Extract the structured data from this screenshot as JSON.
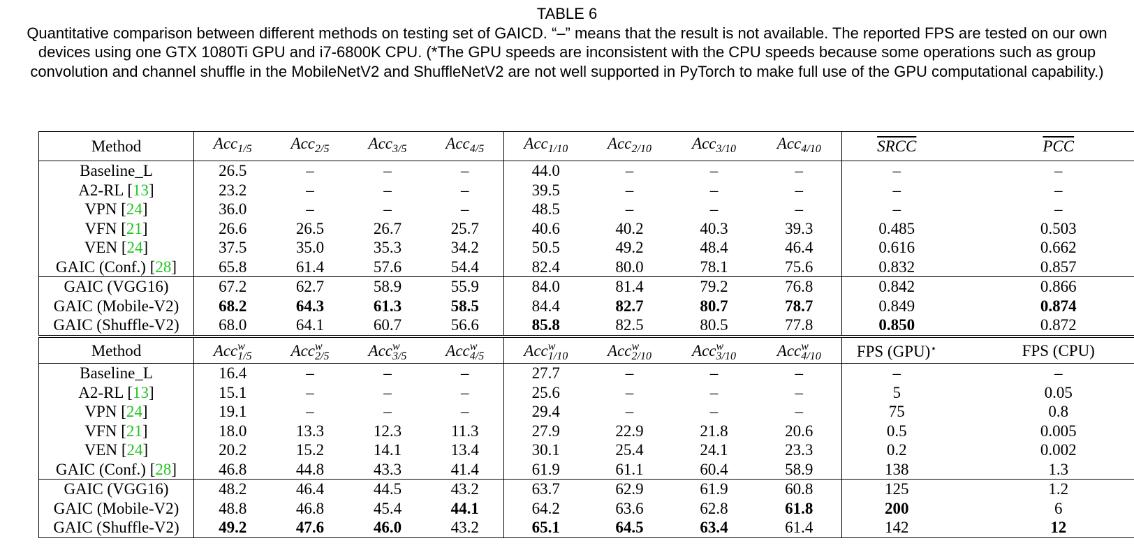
{
  "caption": {
    "label": "TABLE 6",
    "text": "Quantitative comparison between different methods on testing set of GAICD. “–” means that the result is not available. The reported FPS are tested on our own devices using one GTX 1080Ti GPU and i7-6800K CPU. (*The GPU speeds are inconsistent with the CPU speeds because some operations such as group convolution and channel shuffle in the MobileNetV2 and ShuffleNetV2 are not well supported in PyTorch to make full use of the GPU computational capability.)"
  },
  "top_table": {
    "method_header": "Method",
    "headers": [
      {
        "base": "Acc",
        "sub": "1/5"
      },
      {
        "base": "Acc",
        "sub": "2/5"
      },
      {
        "base": "Acc",
        "sub": "3/5"
      },
      {
        "base": "Acc",
        "sub": "4/5"
      },
      {
        "base": "Acc",
        "sub": "1/10"
      },
      {
        "base": "Acc",
        "sub": "2/10"
      },
      {
        "base": "Acc",
        "sub": "3/10"
      },
      {
        "base": "Acc",
        "sub": "4/10"
      },
      {
        "text": "SRCC"
      },
      {
        "text": "PCC"
      }
    ],
    "rows": [
      {
        "name": "Baseline_L",
        "cite": "",
        "values": [
          "26.5",
          "–",
          "–",
          "–",
          "44.0",
          "–",
          "–",
          "–",
          "–",
          "–"
        ],
        "bold": []
      },
      {
        "name": "A2-RL",
        "cite": "13",
        "values": [
          "23.2",
          "–",
          "–",
          "–",
          "39.5",
          "–",
          "–",
          "–",
          "–",
          "–"
        ],
        "bold": []
      },
      {
        "name": "VPN",
        "cite": "24",
        "values": [
          "36.0",
          "–",
          "–",
          "–",
          "48.5",
          "–",
          "–",
          "–",
          "–",
          "–"
        ],
        "bold": []
      },
      {
        "name": "VFN",
        "cite": "21",
        "values": [
          "26.6",
          "26.5",
          "26.7",
          "25.7",
          "40.6",
          "40.2",
          "40.3",
          "39.3",
          "0.485",
          "0.503"
        ],
        "bold": []
      },
      {
        "name": "VEN",
        "cite": "24",
        "values": [
          "37.5",
          "35.0",
          "35.3",
          "34.2",
          "50.5",
          "49.2",
          "48.4",
          "46.4",
          "0.616",
          "0.662"
        ],
        "bold": []
      },
      {
        "name": "GAIC (Conf.)",
        "cite": "28",
        "values": [
          "65.8",
          "61.4",
          "57.6",
          "54.4",
          "82.4",
          "80.0",
          "78.1",
          "75.6",
          "0.832",
          "0.857"
        ],
        "bold": []
      },
      {
        "name": "GAIC (VGG16)",
        "cite": "",
        "values": [
          "67.2",
          "62.7",
          "58.9",
          "55.9",
          "84.0",
          "81.4",
          "79.2",
          "76.8",
          "0.842",
          "0.866"
        ],
        "bold": []
      },
      {
        "name": "GAIC (Mobile-V2)",
        "cite": "",
        "values": [
          "68.2",
          "64.3",
          "61.3",
          "58.5",
          "84.4",
          "82.7",
          "80.7",
          "78.7",
          "0.849",
          "0.874"
        ],
        "bold": [
          0,
          1,
          2,
          3,
          5,
          6,
          7,
          9
        ]
      },
      {
        "name": "GAIC (Shuffle-V2)",
        "cite": "",
        "values": [
          "68.0",
          "64.1",
          "60.7",
          "56.6",
          "85.8",
          "82.5",
          "80.5",
          "77.8",
          "0.850",
          "0.872"
        ],
        "bold": [
          4,
          8
        ]
      }
    ]
  },
  "bottom_table": {
    "method_header": "Method",
    "headers": [
      {
        "base": "Acc",
        "sup": "w",
        "sub": "1/5"
      },
      {
        "base": "Acc",
        "sup": "w",
        "sub": "2/5"
      },
      {
        "base": "Acc",
        "sup": "w",
        "sub": "3/5"
      },
      {
        "base": "Acc",
        "sup": "w",
        "sub": "4/5"
      },
      {
        "base": "Acc",
        "sup": "w",
        "sub": "1/10"
      },
      {
        "base": "Acc",
        "sup": "w",
        "sub": "2/10"
      },
      {
        "base": "Acc",
        "sup": "w",
        "sub": "3/10"
      },
      {
        "base": "Acc",
        "sup": "w",
        "sub": "4/10"
      },
      {
        "text": "FPS (GPU)",
        "star": "⋆"
      },
      {
        "text": "FPS (CPU)"
      }
    ],
    "rows": [
      {
        "name": "Baseline_L",
        "cite": "",
        "values": [
          "16.4",
          "–",
          "–",
          "–",
          "27.7",
          "–",
          "–",
          "–",
          "–",
          "–"
        ],
        "bold": []
      },
      {
        "name": "A2-RL",
        "cite": "13",
        "values": [
          "15.1",
          "–",
          "–",
          "–",
          "25.6",
          "–",
          "–",
          "–",
          "5",
          "0.05"
        ],
        "bold": []
      },
      {
        "name": "VPN",
        "cite": "24",
        "values": [
          "19.1",
          "–",
          "–",
          "–",
          "29.4",
          "–",
          "–",
          "–",
          "75",
          "0.8"
        ],
        "bold": []
      },
      {
        "name": "VFN",
        "cite": "21",
        "values": [
          "18.0",
          "13.3",
          "12.3",
          "11.3",
          "27.9",
          "22.9",
          "21.8",
          "20.6",
          "0.5",
          "0.005"
        ],
        "bold": []
      },
      {
        "name": "VEN",
        "cite": "24",
        "values": [
          "20.2",
          "15.2",
          "14.1",
          "13.4",
          "30.1",
          "25.4",
          "24.1",
          "23.3",
          "0.2",
          "0.002"
        ],
        "bold": []
      },
      {
        "name": "GAIC (Conf.)",
        "cite": "28",
        "values": [
          "46.8",
          "44.8",
          "43.3",
          "41.4",
          "61.9",
          "61.1",
          "60.4",
          "58.9",
          "138",
          "1.3"
        ],
        "bold": []
      },
      {
        "name": "GAIC (VGG16)",
        "cite": "",
        "values": [
          "48.2",
          "46.4",
          "44.5",
          "43.2",
          "63.7",
          "62.9",
          "61.9",
          "60.8",
          "125",
          "1.2"
        ],
        "bold": []
      },
      {
        "name": "GAIC (Mobile-V2)",
        "cite": "",
        "values": [
          "48.8",
          "46.8",
          "45.4",
          "44.1",
          "64.2",
          "63.6",
          "62.8",
          "61.8",
          "200",
          "6"
        ],
        "bold": [
          3,
          7,
          8
        ]
      },
      {
        "name": "GAIC (Shuffle-V2)",
        "cite": "",
        "values": [
          "49.2",
          "47.6",
          "46.0",
          "43.2",
          "65.1",
          "64.5",
          "63.4",
          "61.4",
          "142",
          "12"
        ],
        "bold": [
          0,
          1,
          2,
          4,
          5,
          6,
          9
        ]
      }
    ]
  }
}
